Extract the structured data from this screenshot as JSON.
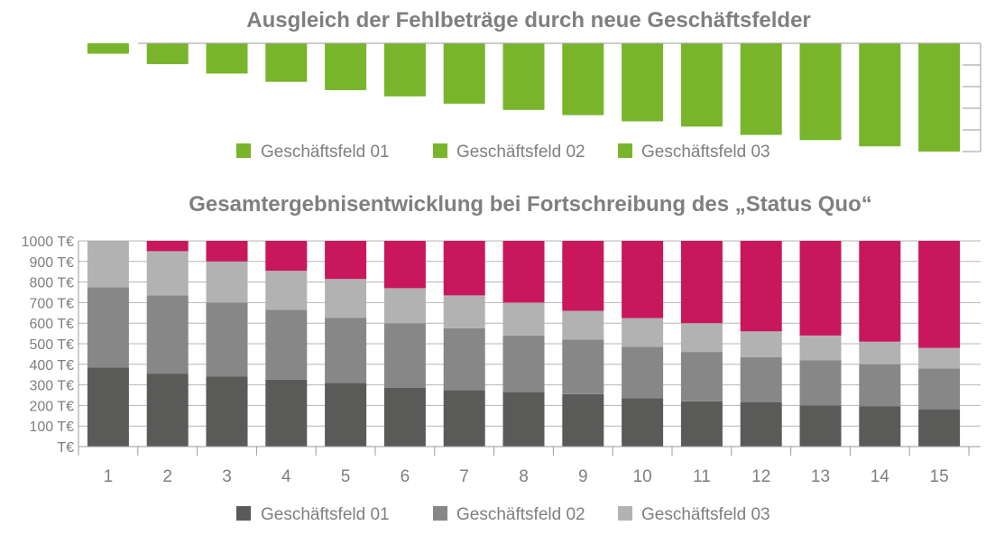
{
  "chart_data": [
    {
      "type": "bar",
      "title": "Ausgleich der Fehlbeträge durch neue Geschäftsfelder",
      "categories": [
        "1",
        "2",
        "3",
        "4",
        "5",
        "6",
        "7",
        "8",
        "9",
        "10",
        "11",
        "12",
        "13",
        "14",
        "15"
      ],
      "series": [
        {
          "values": [
            -50,
            -100,
            -145,
            -185,
            -225,
            -255,
            -290,
            -320,
            -345,
            -375,
            -400,
            -440,
            -465,
            -495,
            -520
          ],
          "color": "#78b52a"
        }
      ],
      "ylim": [
        -520,
        0
      ],
      "y_orientation": "values extend downward from the top axis",
      "legend": {
        "position": "bottom",
        "entries": [
          "Geschäftsfeld 01",
          "Geschäftsfeld 02",
          "Geschäftsfeld 03"
        ],
        "colors": [
          "#78b52a",
          "#78b52a",
          "#78b52a"
        ]
      },
      "grid": false,
      "tick_labels_shown": false
    },
    {
      "type": "bar",
      "stacked": true,
      "title": "Gesamtergebnisentwicklung bei Fortschreibung des „Status Quo“",
      "categories": [
        "1",
        "2",
        "3",
        "4",
        "5",
        "6",
        "7",
        "8",
        "9",
        "10",
        "11",
        "12",
        "13",
        "14",
        "15"
      ],
      "series": [
        {
          "name": "Geschäftsfeld 01",
          "values": [
            385,
            355,
            340,
            325,
            310,
            285,
            275,
            265,
            255,
            235,
            220,
            215,
            200,
            195,
            180
          ],
          "color": "#5a5a59"
        },
        {
          "name": "Geschäftsfeld 02",
          "values": [
            390,
            380,
            360,
            340,
            315,
            315,
            300,
            275,
            265,
            250,
            240,
            220,
            220,
            205,
            200
          ],
          "color": "#878787"
        },
        {
          "name": "Geschäftsfeld 03",
          "values": [
            225,
            215,
            200,
            190,
            190,
            170,
            160,
            160,
            140,
            140,
            140,
            125,
            120,
            110,
            100
          ],
          "color": "#b2b2b2"
        },
        {
          "values": [
            0,
            50,
            100,
            145,
            185,
            230,
            265,
            300,
            340,
            375,
            400,
            440,
            460,
            490,
            520
          ],
          "color": "#c8175d"
        }
      ],
      "y_tick_labels": [
        "T€",
        "100 T€",
        "200 T€",
        "300 T€",
        "400 T€",
        "500 T€",
        "600 T€",
        "700 T€",
        "800 T€",
        "900 T€",
        "1000 T€"
      ],
      "ylim": [
        0,
        1000
      ],
      "legend": {
        "position": "bottom",
        "entries": [
          "Geschäftsfeld 01",
          "Geschäftsfeld 02",
          "Geschäftsfeld 03"
        ],
        "colors": [
          "#5a5a59",
          "#878787",
          "#b2b2b2"
        ]
      },
      "grid": true
    }
  ]
}
